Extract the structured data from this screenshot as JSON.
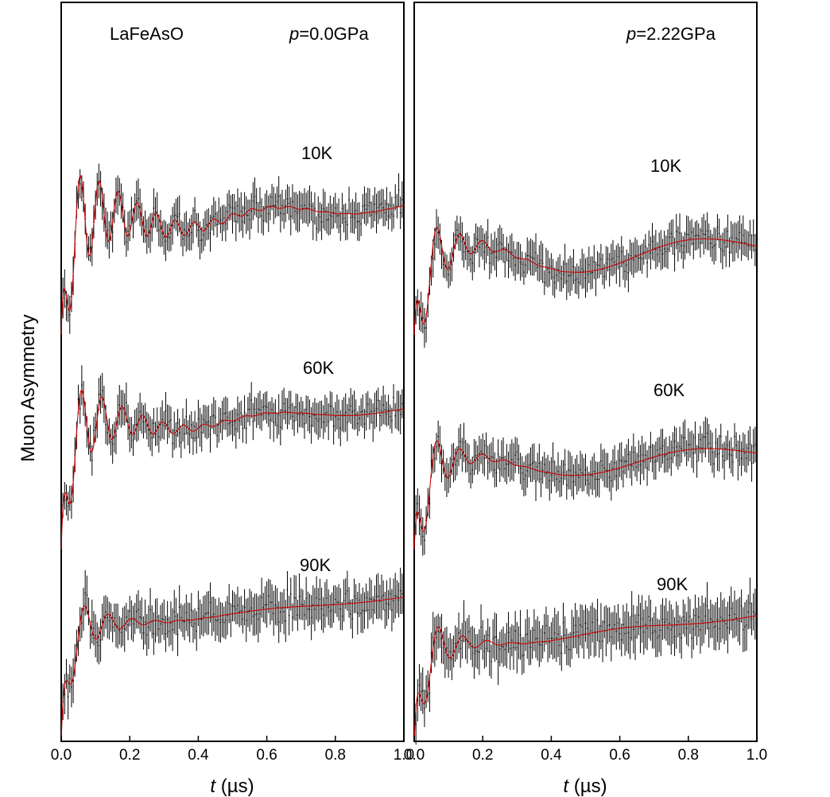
{
  "chart_data": {
    "type": "line",
    "ylabel": "Muon Asymmetry",
    "xlabel_italic": "t",
    "xlabel_unit": " (µs)",
    "xlim": [
      0.0,
      1.0
    ],
    "xticks": [
      "0.0",
      "0.2",
      "0.4",
      "0.6",
      "0.8",
      "1.0"
    ],
    "y_ticks_shown": false,
    "panels": [
      {
        "sample_label": "LaFeAsO",
        "pressure_symbol": "p",
        "pressure_value": "=0.0GPa",
        "series": [
          {
            "name": "10K",
            "fit": {
              "baseline": 0.305,
              "amp_osc": 0.09,
              "freq_mhz": 18.0,
              "phase": 0.0,
              "osc_decay": 0.16,
              "amp_slow": 0.018,
              "freq_slow_mhz": 2.0,
              "slow_decay": 0.9,
              "slope": -0.03,
              "start": 0.45,
              "initial_decay": 0.015
            },
            "noise": 0.022
          },
          {
            "name": "60K",
            "fit": {
              "baseline": 0.58,
              "amp_osc": 0.08,
              "freq_mhz": 16.8,
              "phase": 0.0,
              "osc_decay": 0.13,
              "amp_slow": 0.012,
              "freq_slow_mhz": 2.0,
              "slow_decay": 0.9,
              "slope": -0.03,
              "start": 0.74,
              "initial_decay": 0.015
            },
            "noise": 0.022
          },
          {
            "name": "90K",
            "fit": {
              "baseline": 0.85,
              "amp_osc": 0.07,
              "freq_mhz": 14.5,
              "phase": 0.0,
              "osc_decay": 0.08,
              "amp_slow": 0.004,
              "freq_slow_mhz": 2.0,
              "slow_decay": 0.9,
              "slope": -0.045,
              "start": 1.0,
              "initial_decay": 0.015
            },
            "noise": 0.025
          }
        ]
      },
      {
        "sample_label": "",
        "pressure_symbol": "p",
        "pressure_value": "=2.22GPa",
        "series": [
          {
            "name": "10K",
            "fit": {
              "baseline": 0.36,
              "amp_osc": 0.09,
              "freq_mhz": 15.0,
              "phase": 0.0,
              "osc_decay": 0.08,
              "amp_slow": 0.03,
              "freq_slow_mhz": 1.5,
              "slow_decay": 1.2,
              "slope": -0.03,
              "start": 0.45,
              "initial_decay": 0.015
            },
            "noise": 0.022
          },
          {
            "name": "60K",
            "fit": {
              "baseline": 0.64,
              "amp_osc": 0.09,
              "freq_mhz": 15.0,
              "phase": 0.0,
              "osc_decay": 0.07,
              "amp_slow": 0.022,
              "freq_slow_mhz": 1.5,
              "slow_decay": 1.2,
              "slope": -0.03,
              "start": 0.74,
              "initial_decay": 0.015
            },
            "noise": 0.022
          },
          {
            "name": "90K",
            "fit": {
              "baseline": 0.88,
              "amp_osc": 0.08,
              "freq_mhz": 14.0,
              "phase": 0.0,
              "osc_decay": 0.07,
              "amp_slow": 0.006,
              "freq_slow_mhz": 2.0,
              "slow_decay": 0.9,
              "slope": -0.05,
              "start": 1.0,
              "initial_decay": 0.015
            },
            "noise": 0.028
          }
        ]
      }
    ]
  }
}
